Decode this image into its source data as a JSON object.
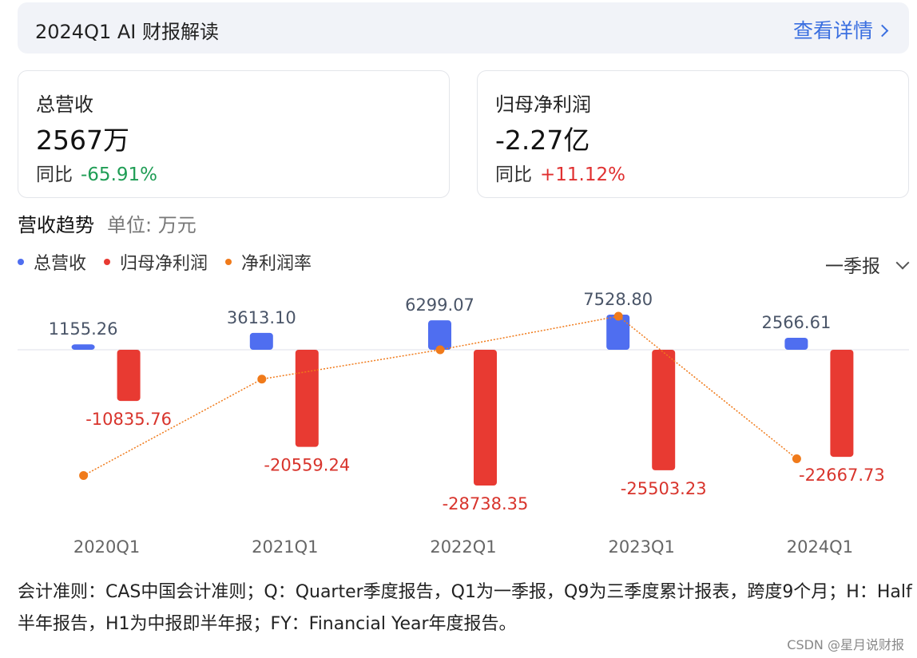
{
  "header": {
    "title": "2024Q1 AI 财报解读",
    "link_label": "查看详情"
  },
  "cards": [
    {
      "label": "总营收",
      "value": "2567万",
      "yoy_label": "同比",
      "yoy_value": "-65.91%",
      "yoy_color": "#1f9d55"
    },
    {
      "label": "归母净利润",
      "value": "-2.27亿",
      "yoy_label": "同比",
      "yoy_value": "+11.12%",
      "yoy_color": "#e03030"
    }
  ],
  "section": {
    "title": "营收趋势",
    "unit": "单位: 万元"
  },
  "legend": [
    {
      "name": "总营收",
      "color": "#4f6ef0"
    },
    {
      "name": "归母净利润",
      "color": "#e83a32"
    },
    {
      "name": "净利润率",
      "color": "#f07a1a"
    }
  ],
  "period_select": {
    "selected": "一季报"
  },
  "chart_data": {
    "type": "bar",
    "categories": [
      "2020Q1",
      "2021Q1",
      "2022Q1",
      "2023Q1",
      "2024Q1"
    ],
    "series": [
      {
        "name": "总营收",
        "type": "bar",
        "color": "#4f6ef0",
        "values": [
          1155.26,
          3613.1,
          6299.07,
          7528.8,
          2566.61
        ],
        "labels": [
          "1155.26",
          "3613.10",
          "6299.07",
          "7528.80",
          "2566.61"
        ]
      },
      {
        "name": "归母净利润",
        "type": "bar",
        "color": "#e83a32",
        "values": [
          -10835.76,
          -20559.24,
          -28738.35,
          -25503.23,
          -22667.73
        ],
        "labels": [
          "-10835.76",
          "-20559.24",
          "-28738.35",
          "-25503.23",
          "-22667.73"
        ]
      },
      {
        "name": "净利润率",
        "type": "line",
        "color": "#f07a1a",
        "relative_values": [
          -150,
          -35,
          0,
          40,
          -130
        ]
      }
    ]
  },
  "footnote": "会计准则：CAS中国会计准则；Q：Quarter季度报告，Q1为一季报，Q9为三季度累计报表，跨度9个月；H：Half半年报告，H1为中报即半年报；FY：Financial Year年度报告。",
  "watermark": "CSDN @星月说财报"
}
